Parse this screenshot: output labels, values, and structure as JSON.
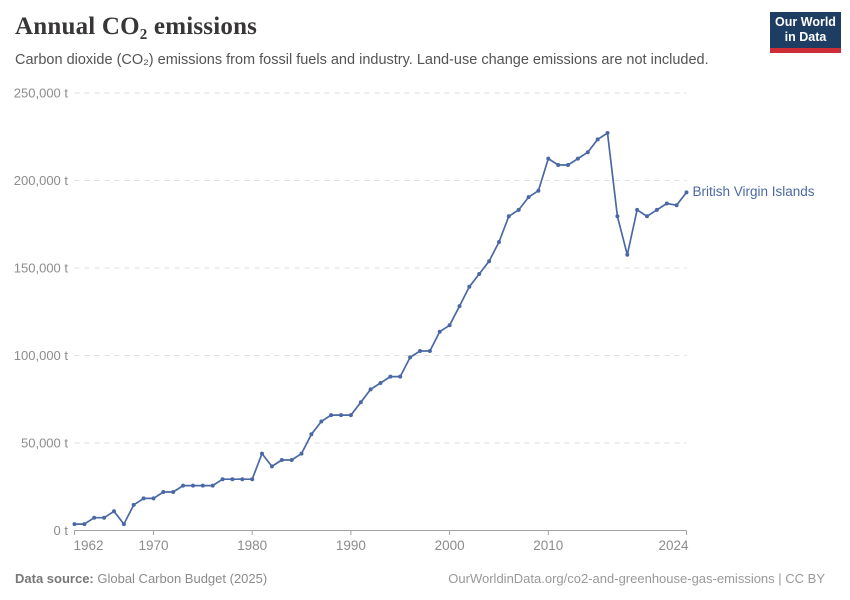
{
  "header": {
    "title": "Annual CO₂ emissions",
    "subtitle": "Carbon dioxide (CO₂) emissions from fossil fuels and industry. Land-use change emissions are not included.",
    "logo": {
      "line1": "Our World",
      "line2": "in Data",
      "bg_color": "#1d3d63",
      "bar_color": "#cd2d37"
    }
  },
  "chart_data": {
    "type": "line",
    "title": "Annual CO₂ emissions",
    "xlabel": "",
    "ylabel": "",
    "unit": "t",
    "grid": "horizontal dashed",
    "legend_position": "end-of-line label",
    "xlim": [
      1962,
      2024
    ],
    "ylim": [
      0,
      250000
    ],
    "xticks": [
      1962,
      1970,
      1980,
      1990,
      2000,
      2010,
      2024
    ],
    "yticks": [
      {
        "value": 0,
        "label": "0 t"
      },
      {
        "value": 50000,
        "label": "50,000 t"
      },
      {
        "value": 100000,
        "label": "100,000 t"
      },
      {
        "value": 150000,
        "label": "150,000 t"
      },
      {
        "value": 200000,
        "label": "200,000 t"
      },
      {
        "value": 250000,
        "label": "250,000 t"
      }
    ],
    "series": [
      {
        "name": "British Virgin Islands",
        "color": "#4a69a4",
        "x": [
          1962,
          1963,
          1964,
          1965,
          1966,
          1967,
          1968,
          1969,
          1970,
          1971,
          1972,
          1973,
          1974,
          1975,
          1976,
          1977,
          1978,
          1979,
          1980,
          1981,
          1982,
          1983,
          1984,
          1985,
          1986,
          1987,
          1988,
          1989,
          1990,
          1991,
          1992,
          1993,
          1994,
          1995,
          1996,
          1997,
          1998,
          1999,
          2000,
          2001,
          2002,
          2003,
          2004,
          2005,
          2006,
          2007,
          2008,
          2009,
          2010,
          2011,
          2012,
          2013,
          2014,
          2015,
          2016,
          2017,
          2018,
          2019,
          2020,
          2021,
          2022,
          2023,
          2024
        ],
        "values": [
          3664,
          3664,
          7328,
          7328,
          10992,
          3664,
          14656,
          18320,
          18320,
          21984,
          21984,
          25648,
          25648,
          25648,
          25648,
          29312,
          29312,
          29312,
          29312,
          43968,
          36640,
          40304,
          40304,
          43968,
          54960,
          62288,
          65952,
          65952,
          65952,
          73280,
          80608,
          84272,
          87936,
          87936,
          98928,
          102592,
          102592,
          113584,
          117248,
          128240,
          139232,
          146560,
          153888,
          164880,
          179536,
          183200,
          190528,
          194192,
          212512,
          208848,
          208848,
          212512,
          216176,
          223504,
          227168,
          179536,
          157552,
          183200,
          179536,
          183200,
          186864,
          185900,
          193200
        ]
      }
    ]
  },
  "footer": {
    "source_label": "Data source:",
    "source_value": " Global Carbon Budget (2025)",
    "attribution": "OurWorldinData.org/co2-and-greenhouse-gas-emissions | CC BY"
  },
  "colors": {
    "line": "#4a69a4",
    "title_text": "#383636",
    "subtitle_text": "#545454",
    "axis_text": "#8c8c8c",
    "gridline": "#dedede",
    "axis_line": "#a3a3a3",
    "logo_bg": "#1d3d63",
    "logo_bar": "#cd2d37"
  }
}
